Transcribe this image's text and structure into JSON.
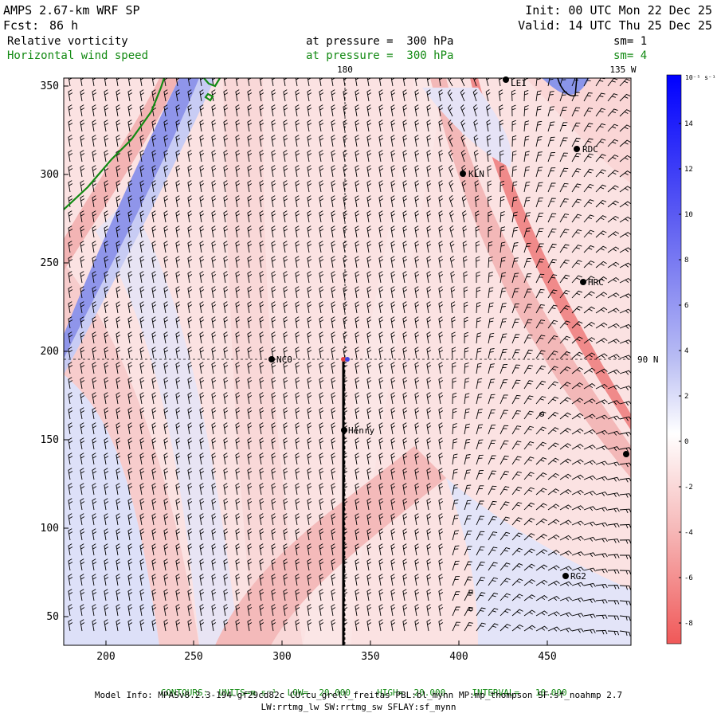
{
  "header": {
    "model": "AMPS 2.67-km WRF SP",
    "fcst_label": "Fcst:",
    "fcst_value": "86 h",
    "init": "Init: 00 UTC Mon 22 Dec 25",
    "valid": "Valid: 14 UTC Thu 25 Dec 25",
    "field1": "Relative vorticity",
    "field1_pressure": "at pressure =  300 hPa",
    "field1_sm": "sm= 1",
    "field2": "Horizontal wind speed",
    "field2_pressure": "at pressure =  300 hPa",
    "field2_sm": "sm= 4"
  },
  "map": {
    "meridian_top_label": "180",
    "meridian_right_label": "135 W",
    "parallel_label": "90 N",
    "x_ticks": [
      "200",
      "250",
      "300",
      "350",
      "400",
      "450"
    ],
    "y_ticks": [
      "350",
      "300",
      "250",
      "200",
      "150",
      "100",
      "50"
    ],
    "stations": [
      {
        "name": "NCO"
      },
      {
        "name": "Henry"
      },
      {
        "name": "KLN"
      },
      {
        "name": "RDC"
      },
      {
        "name": "HRC"
      },
      {
        "name": "RG2"
      },
      {
        "name": "LEI"
      }
    ]
  },
  "colorbar": {
    "unit": "10⁻⁵ s⁻¹",
    "ticks": [
      "14",
      "12",
      "10",
      "8",
      "6",
      "4",
      "2",
      "0",
      "-2",
      "-4",
      "-6",
      "-8"
    ]
  },
  "colors": {
    "positive": "#d8dcf8",
    "negative": "#f6c8c8",
    "strong_blue": "#0000ff",
    "strong_red": "#f06060",
    "contour_green": "#138a13"
  },
  "footer": {
    "contours_label": "CONTOURS:",
    "contours_units": "UNITS=m s⁻¹",
    "contours_low": "LOW=  20.000",
    "contours_high": "HIGH=  20.000",
    "contours_interval": "INTERVAL=   10.000",
    "model_info": "Model Info: MPASv8.2.3-194-gf29cd82c CU:cu_grell_freitas PBL:bl_mynn MP:mp_thompson SF:sf_noahmp 2.7",
    "model_info2": "LW:rrtmg_lw SW:rrtmg_sw SFLAY:sf_mynn"
  }
}
